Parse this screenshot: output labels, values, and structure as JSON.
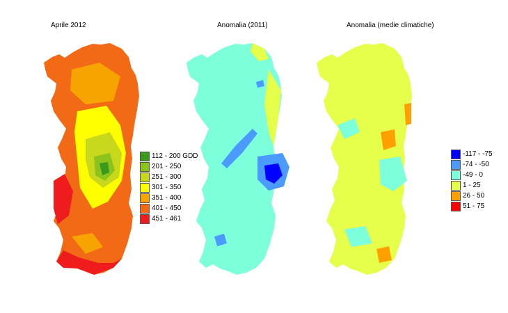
{
  "panels": [
    {
      "title": "Aprile 2012",
      "base_color": "#f26a16",
      "legend": [
        {
          "label": "112 - 200 GDD",
          "color": "#3a9a1e"
        },
        {
          "label": "201 - 250",
          "color": "#8cc31c"
        },
        {
          "label": "251 - 300",
          "color": "#c8d81c"
        },
        {
          "label": "301 - 350",
          "color": "#ffff00"
        },
        {
          "label": "351 - 400",
          "color": "#f7a400"
        },
        {
          "label": "401 - 450",
          "color": "#f26a16"
        },
        {
          "label": "451 - 461",
          "color": "#ee1c1c"
        }
      ]
    },
    {
      "title": "Anomalia (2011)",
      "base_color": "#7dffdc",
      "legend": []
    },
    {
      "title": "Anomalia (medie climatiche)",
      "base_color": "#e5ff4a",
      "legend": [
        {
          "label": "-117 - -75",
          "color": "#0000ff"
        },
        {
          "label": "-74 - -50",
          "color": "#4b9bff"
        },
        {
          "label": "-49 - 0",
          "color": "#7dffdc"
        },
        {
          "label": "1 - 25",
          "color": "#e5ff4a"
        },
        {
          "label": "26 - 50",
          "color": "#ffa000"
        },
        {
          "label": "51 - 75",
          "color": "#ff0000"
        }
      ]
    }
  ]
}
